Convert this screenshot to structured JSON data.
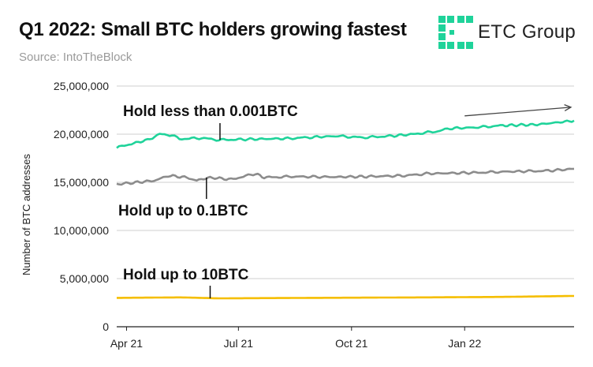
{
  "header": {
    "title": "Q1 2022: Small BTC holders growing fastest",
    "subtitle": "Source: IntoTheBlock",
    "logo_text": "ETC Group"
  },
  "chart_data": {
    "type": "line",
    "title": "Q1 2022: Small BTC holders growing fastest",
    "subtitle": "Source: IntoTheBlock",
    "xlabel": "",
    "ylabel": "Number of BTC addresses",
    "ylim": [
      0,
      25000000
    ],
    "yticks": [
      "0",
      "5,000,000",
      "10,000,000",
      "15,000,000",
      "20,000,000",
      "25,000,000"
    ],
    "xrange": [
      "2021-03-24",
      "2022-03-31"
    ],
    "xticks": [
      {
        "date": "2021-04-01",
        "label": "Apr 21"
      },
      {
        "date": "2021-07-01",
        "label": "Jul 21"
      },
      {
        "date": "2021-10-01",
        "label": "Oct 21"
      },
      {
        "date": "2022-01-01",
        "label": "Jan 22"
      }
    ],
    "grid": "horizontal",
    "series": [
      {
        "name": "Hold less than 0.001BTC",
        "color": "#1fd39a",
        "points": [
          [
            "2021-03-24",
            18600000
          ],
          [
            "2021-04-05",
            19000000
          ],
          [
            "2021-04-18",
            19400000
          ],
          [
            "2021-04-28",
            20000000
          ],
          [
            "2021-05-08",
            19900000
          ],
          [
            "2021-05-14",
            19500000
          ],
          [
            "2021-06-01",
            19600000
          ],
          [
            "2021-06-15",
            19400000
          ],
          [
            "2021-07-01",
            19450000
          ],
          [
            "2021-07-20",
            19500000
          ],
          [
            "2021-08-10",
            19550000
          ],
          [
            "2021-09-01",
            19700000
          ],
          [
            "2021-09-20",
            19800000
          ],
          [
            "2021-10-10",
            19650000
          ],
          [
            "2021-11-01",
            19800000
          ],
          [
            "2021-11-20",
            20000000
          ],
          [
            "2021-12-10",
            20300000
          ],
          [
            "2021-12-20",
            20600000
          ],
          [
            "2022-01-10",
            20700000
          ],
          [
            "2022-02-01",
            20900000
          ],
          [
            "2022-03-01",
            21000000
          ],
          [
            "2022-03-31",
            21400000
          ]
        ]
      },
      {
        "name": "Hold up to 0.1BTC",
        "color": "#8c8c8c",
        "points": [
          [
            "2021-03-24",
            14800000
          ],
          [
            "2021-04-10",
            15000000
          ],
          [
            "2021-04-25",
            15200000
          ],
          [
            "2021-05-05",
            15700000
          ],
          [
            "2021-05-20",
            15500000
          ],
          [
            "2021-05-28",
            15200000
          ],
          [
            "2021-06-08",
            15500000
          ],
          [
            "2021-06-25",
            15300000
          ],
          [
            "2021-07-05",
            15600000
          ],
          [
            "2021-07-15",
            15900000
          ],
          [
            "2021-07-22",
            15500000
          ],
          [
            "2021-08-15",
            15600000
          ],
          [
            "2021-09-15",
            15550000
          ],
          [
            "2021-10-15",
            15600000
          ],
          [
            "2021-11-15",
            15700000
          ],
          [
            "2021-12-01",
            15900000
          ],
          [
            "2021-12-20",
            15950000
          ],
          [
            "2022-01-10",
            16000000
          ],
          [
            "2022-02-01",
            16100000
          ],
          [
            "2022-02-20",
            16150000
          ],
          [
            "2022-03-10",
            16200000
          ],
          [
            "2022-03-31",
            16400000
          ]
        ]
      },
      {
        "name": "Hold up to 10BTC",
        "color": "#f5be00",
        "points": [
          [
            "2021-03-24",
            3000000
          ],
          [
            "2021-05-15",
            3050000
          ],
          [
            "2021-06-15",
            2950000
          ],
          [
            "2021-09-01",
            3000000
          ],
          [
            "2021-12-01",
            3050000
          ],
          [
            "2022-02-01",
            3100000
          ],
          [
            "2022-03-31",
            3200000
          ]
        ]
      }
    ],
    "annotations": [
      {
        "text": "Hold less than 0.001BTC",
        "date": "2021-06-16",
        "value": 19400000
      },
      {
        "text": "Hold up to 0.1BTC",
        "date": "2021-06-05",
        "value": 15500000
      },
      {
        "text": "Hold up to 10BTC",
        "date": "2021-06-08",
        "value": 2950000
      }
    ],
    "trend_arrow": {
      "from": [
        "2022-01-01",
        21900000
      ],
      "to": [
        "2022-03-31",
        22800000
      ]
    }
  },
  "colors": {
    "accent": "#1fd39a",
    "logo_green": "#1fd39a",
    "grid": "#cfcfcf",
    "axis": "#222222"
  }
}
